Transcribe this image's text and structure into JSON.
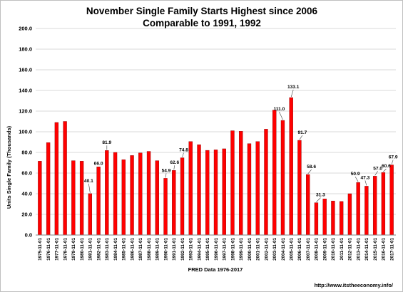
{
  "chart_data": {
    "type": "bar",
    "title": "November Single Family Starts Highest since 2006",
    "subtitle": "Comparable to 1991, 1992",
    "xlabel": "FRED  Data 1976-2017",
    "ylabel": "Units Single Family (Thousands)",
    "ylim": [
      0,
      200
    ],
    "yticks": [
      "0.0",
      "20.0",
      "40.0",
      "60.0",
      "80.0",
      "100.0",
      "120.0",
      "140.0",
      "160.0",
      "180.0",
      "200.0"
    ],
    "grid": true,
    "legend": "none",
    "bar_color": "#ff0000",
    "bar_edge_color": "#7f0000",
    "categories": [
      "1975-11-01",
      "1976-11-01",
      "1977-11-01",
      "1978-11-01",
      "1979-11-01",
      "1980-11-01",
      "1981-11-01",
      "1982-11-01",
      "1983-11-01",
      "1984-11-01",
      "1985-11-01",
      "1986-11-01",
      "1987-11-01",
      "1988-11-01",
      "1989-11-01",
      "1990-11-01",
      "1991-11-01",
      "1992-11-01",
      "1993-11-01",
      "1994-11-01",
      "1995-11-01",
      "1996-11-01",
      "1997-11-01",
      "1998-11-01",
      "1999-11-01",
      "2000-11-01",
      "2001-11-01",
      "2002-11-01",
      "2003-11-01",
      "2004-11-01",
      "2005-11-01",
      "2006-11-01",
      "2007-11-01",
      "2008-11-01",
      "2009-11-01",
      "2010-11-01",
      "2011-11-01",
      "2012-11-01",
      "2013-11-01",
      "2014-11-01",
      "2015-11-01",
      "2016-11-01",
      "2017-11-01"
    ],
    "values": [
      71.5,
      89.5,
      109.0,
      110.0,
      72.0,
      71.5,
      40.1,
      66.0,
      81.9,
      80.0,
      73.0,
      77.0,
      79.5,
      81.0,
      72.0,
      54.9,
      62.6,
      74.8,
      90.5,
      87.5,
      82.0,
      82.5,
      83.5,
      101.0,
      100.5,
      88.5,
      90.5,
      102.5,
      121.0,
      111.0,
      133.1,
      91.7,
      58.6,
      31.3,
      35.0,
      33.0,
      32.5,
      40.0,
      50.9,
      47.3,
      57.0,
      60.6,
      67.9
    ],
    "data_labels": [
      {
        "category": "1981-11-01",
        "text": "40.1"
      },
      {
        "category": "1982-11-01",
        "text": "66.0"
      },
      {
        "category": "1983-11-01",
        "text": "81.9"
      },
      {
        "category": "1990-11-01",
        "text": "54.9"
      },
      {
        "category": "1991-11-01",
        "text": "62.6"
      },
      {
        "category": "1992-11-01",
        "text": "74.8"
      },
      {
        "category": "2004-11-01",
        "text": "111.0"
      },
      {
        "category": "2005-11-01",
        "text": "133.1"
      },
      {
        "category": "2006-11-01",
        "text": "91.7"
      },
      {
        "category": "2007-11-01",
        "text": "58.6"
      },
      {
        "category": "2008-11-01",
        "text": "31.3"
      },
      {
        "category": "2013-11-01",
        "text": "50.9"
      },
      {
        "category": "2014-11-01",
        "text": "47.3"
      },
      {
        "category": "2015-11-01",
        "text": "57.0"
      },
      {
        "category": "2016-11-01",
        "text": "60.6"
      },
      {
        "category": "2017-11-01",
        "text": "67.9"
      }
    ]
  },
  "footer": {
    "source_url": "http://www.itstheeconomy.info/"
  }
}
